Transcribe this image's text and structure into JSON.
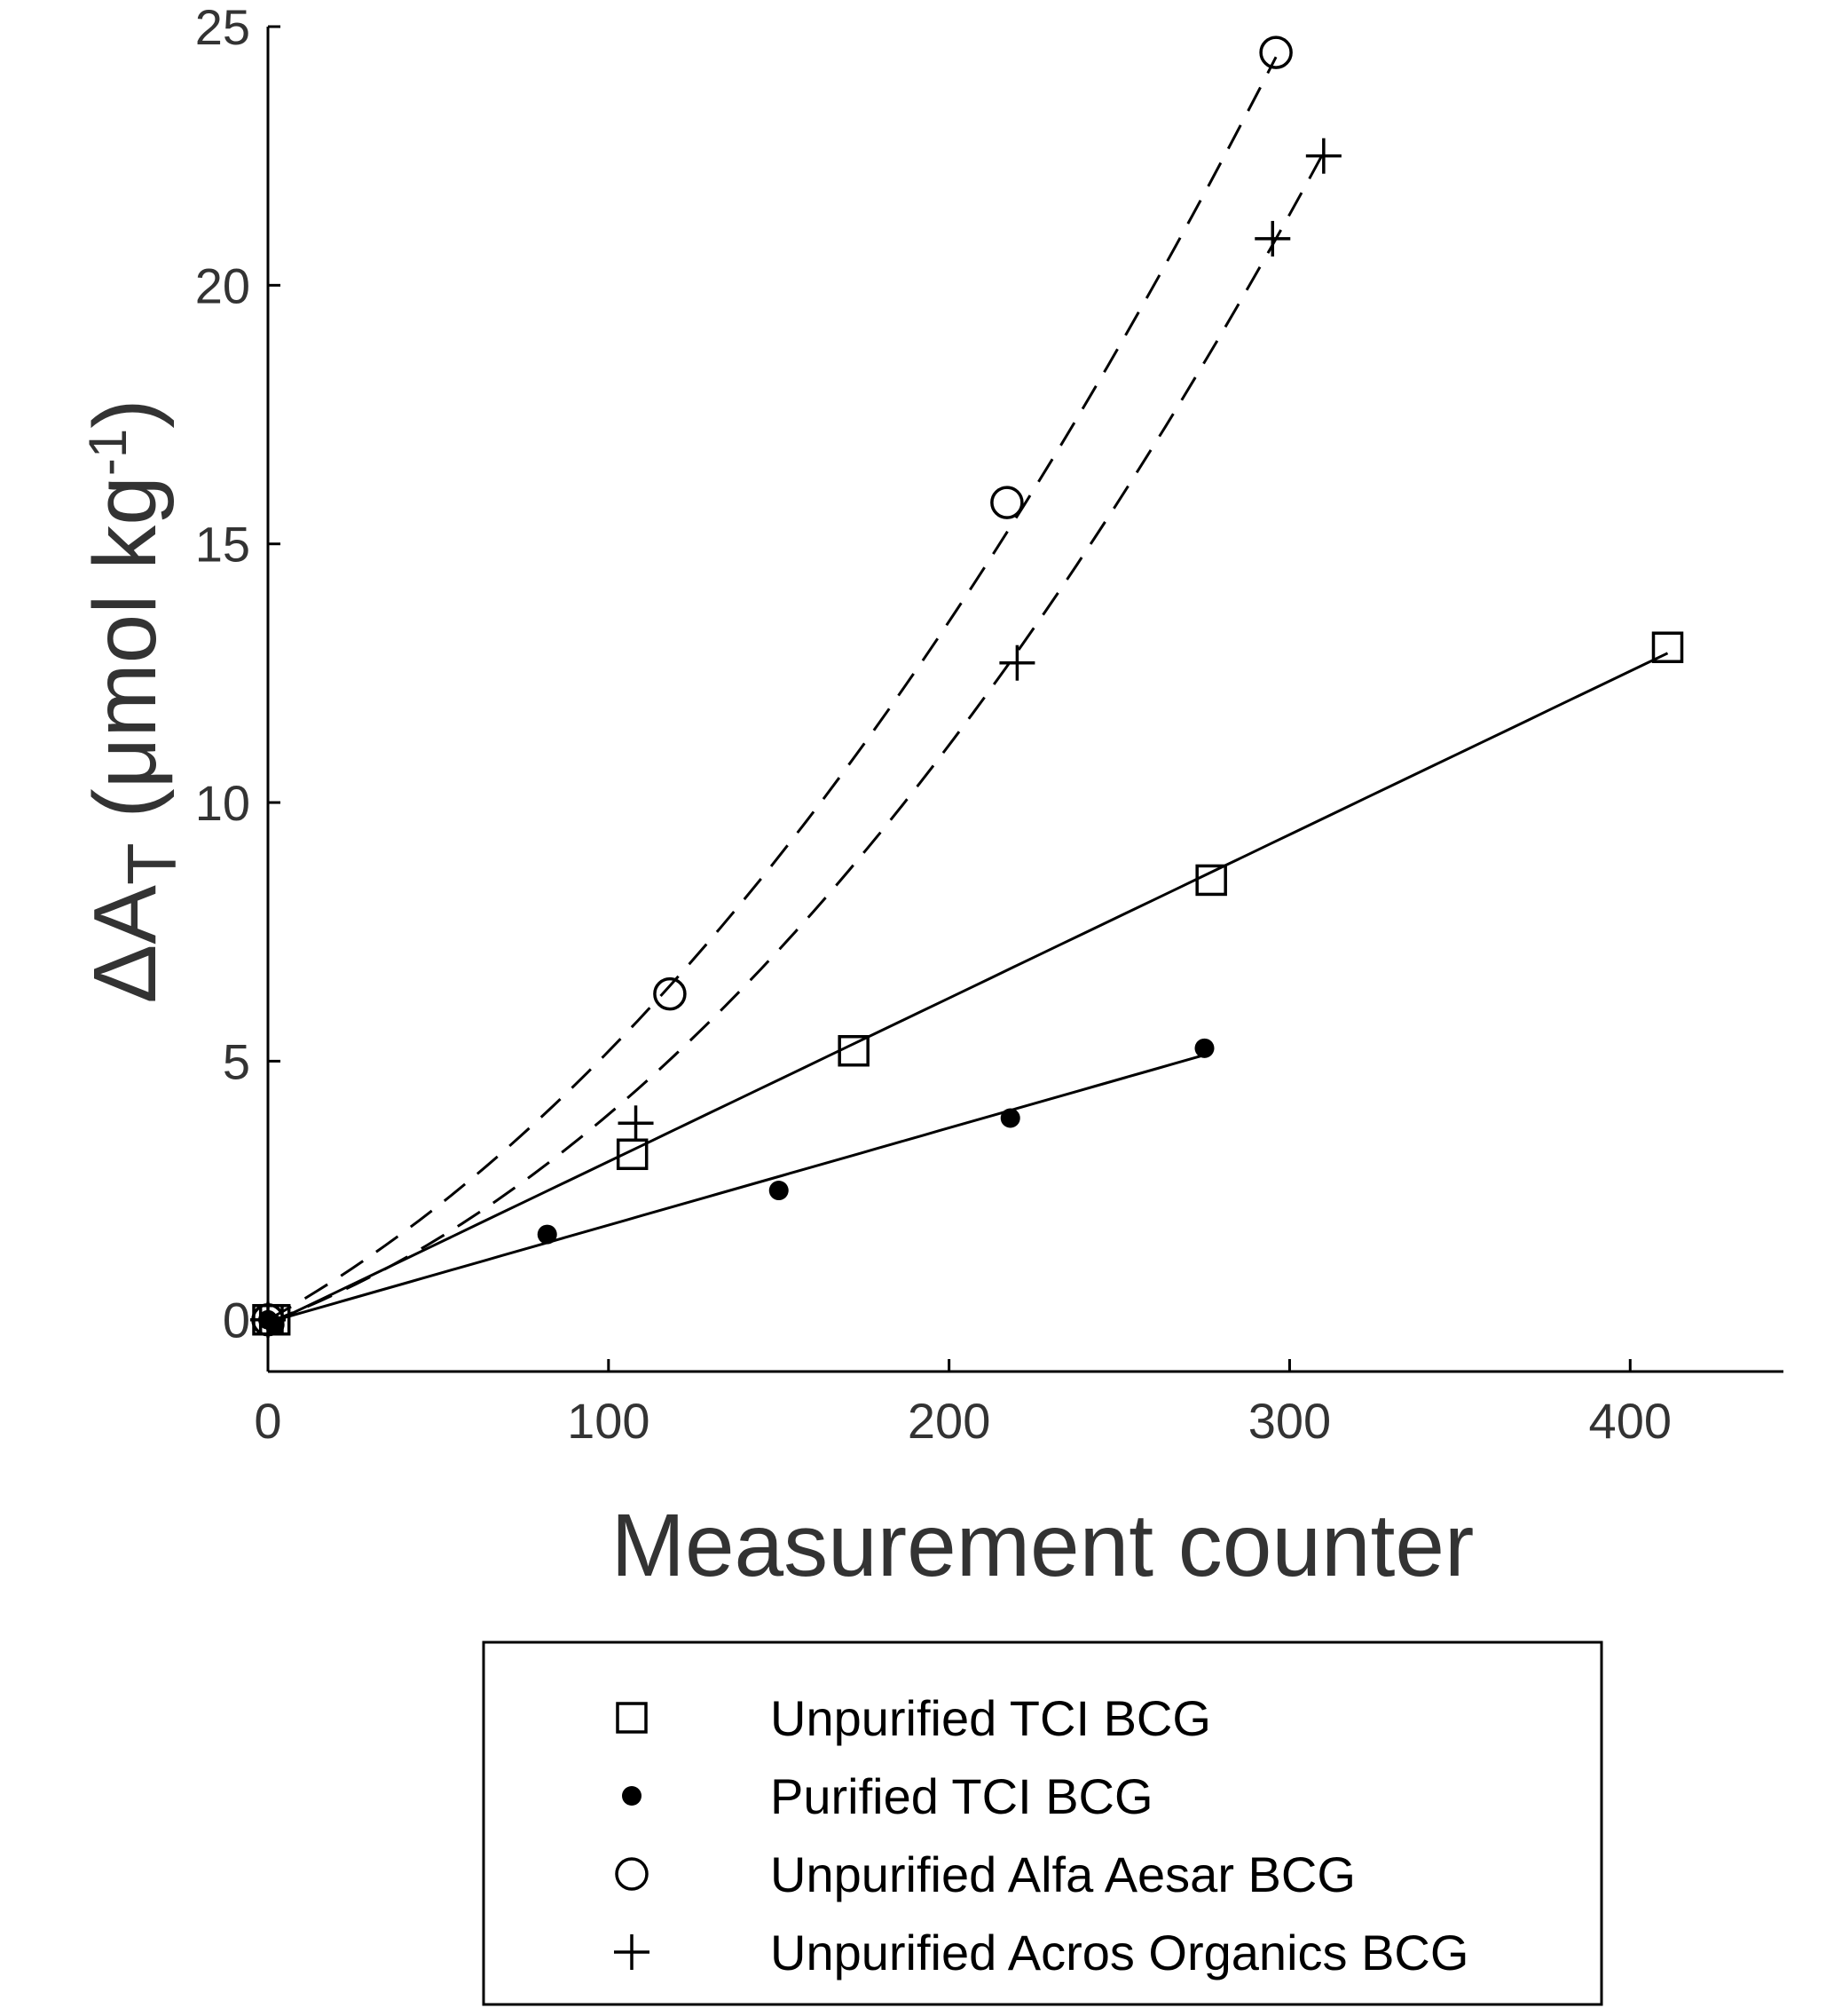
{
  "chart_data": {
    "type": "scatter",
    "title": "",
    "xlabel": "Measurement counter",
    "ylabel": {
      "symbol": "ΔA",
      "subscript": "T",
      "unit_prefix": " (μmol kg",
      "superscript": "-1",
      "unit_suffix": ")"
    },
    "xlim": [
      0,
      445
    ],
    "ylim": [
      -1,
      25
    ],
    "xticks": [
      "0",
      "100",
      "200",
      "300",
      "400"
    ],
    "yticks": [
      "0",
      "5",
      "10",
      "15",
      "20",
      "25"
    ],
    "grid": false,
    "legend_position": "below",
    "series": [
      {
        "name": "Unpurified TCI BCG",
        "marker": "square",
        "points": [
          [
            0,
            0
          ],
          [
            2,
            0
          ],
          [
            107,
            3.2
          ],
          [
            172,
            5.2
          ],
          [
            277,
            8.5
          ],
          [
            411,
            13.0
          ]
        ],
        "fit": {
          "kind": "linear",
          "style": "solid",
          "x0": 0,
          "x1": 411,
          "coef": [
            -0.1,
            0.0316
          ]
        }
      },
      {
        "name": "Purified TCI BCG",
        "marker": "dot",
        "points": [
          [
            0,
            0
          ],
          [
            2,
            -0.1
          ],
          [
            82,
            1.65
          ],
          [
            150,
            2.5
          ],
          [
            218,
            3.9
          ],
          [
            275,
            5.25
          ]
        ],
        "fit": {
          "kind": "linear",
          "style": "solid",
          "x0": 0,
          "x1": 275,
          "coef": [
            -0.05,
            0.0188
          ]
        }
      },
      {
        "name": "Unpurified Alfa Aesar BCG",
        "marker": "circle",
        "points": [
          [
            0,
            0
          ],
          [
            118,
            6.3
          ],
          [
            217,
            15.8
          ],
          [
            296,
            24.5
          ]
        ],
        "fit": {
          "kind": "quadratic",
          "style": "dashed",
          "x0": 0,
          "x1": 296,
          "coef": [
            0,
            0.0363,
            0.000156
          ]
        }
      },
      {
        "name": "Unpurified Acros Organics BCG",
        "marker": "plus",
        "points": [
          [
            0,
            0
          ],
          [
            108,
            3.8
          ],
          [
            220,
            12.7
          ],
          [
            295,
            20.9
          ],
          [
            310,
            22.5
          ]
        ],
        "fit": {
          "kind": "quadratic",
          "style": "dashed",
          "x0": 0,
          "x1": 310,
          "coef": [
            -0.05,
            0.0246,
            0.000156
          ]
        }
      }
    ],
    "colors": {
      "axis": "#000000",
      "text": "#333333",
      "marks": "#000000"
    }
  }
}
